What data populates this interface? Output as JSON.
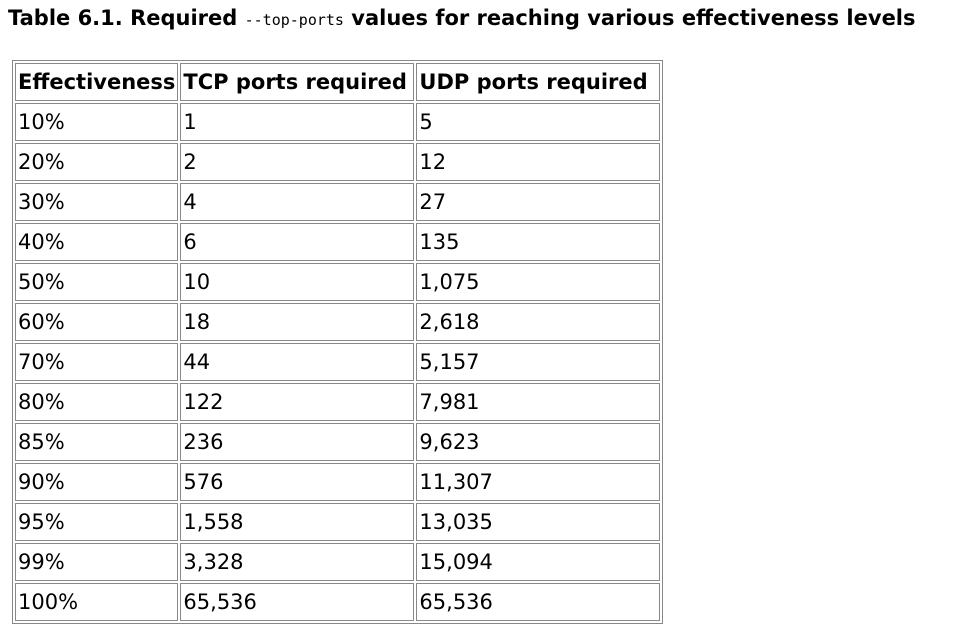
{
  "title": {
    "prefix": "Table 6.1. Required ",
    "code": "--top-ports",
    "suffix": " values for reaching various effectiveness levels"
  },
  "table": {
    "header": [
      "Effectiveness",
      "TCP ports required",
      "UDP ports required"
    ],
    "rows": [
      [
        "10%",
        "1",
        "5"
      ],
      [
        "20%",
        "2",
        "12"
      ],
      [
        "30%",
        "4",
        "27"
      ],
      [
        "40%",
        "6",
        "135"
      ],
      [
        "50%",
        "10",
        "1,075"
      ],
      [
        "60%",
        "18",
        "2,618"
      ],
      [
        "70%",
        "44",
        "5,157"
      ],
      [
        "80%",
        "122",
        "7,981"
      ],
      [
        "85%",
        "236",
        "9,623"
      ],
      [
        "90%",
        "576",
        "11,307"
      ],
      [
        "95%",
        "1,558",
        "13,035"
      ],
      [
        "99%",
        "3,328",
        "15,094"
      ],
      [
        "100%",
        "65,536",
        "65,536"
      ]
    ]
  }
}
